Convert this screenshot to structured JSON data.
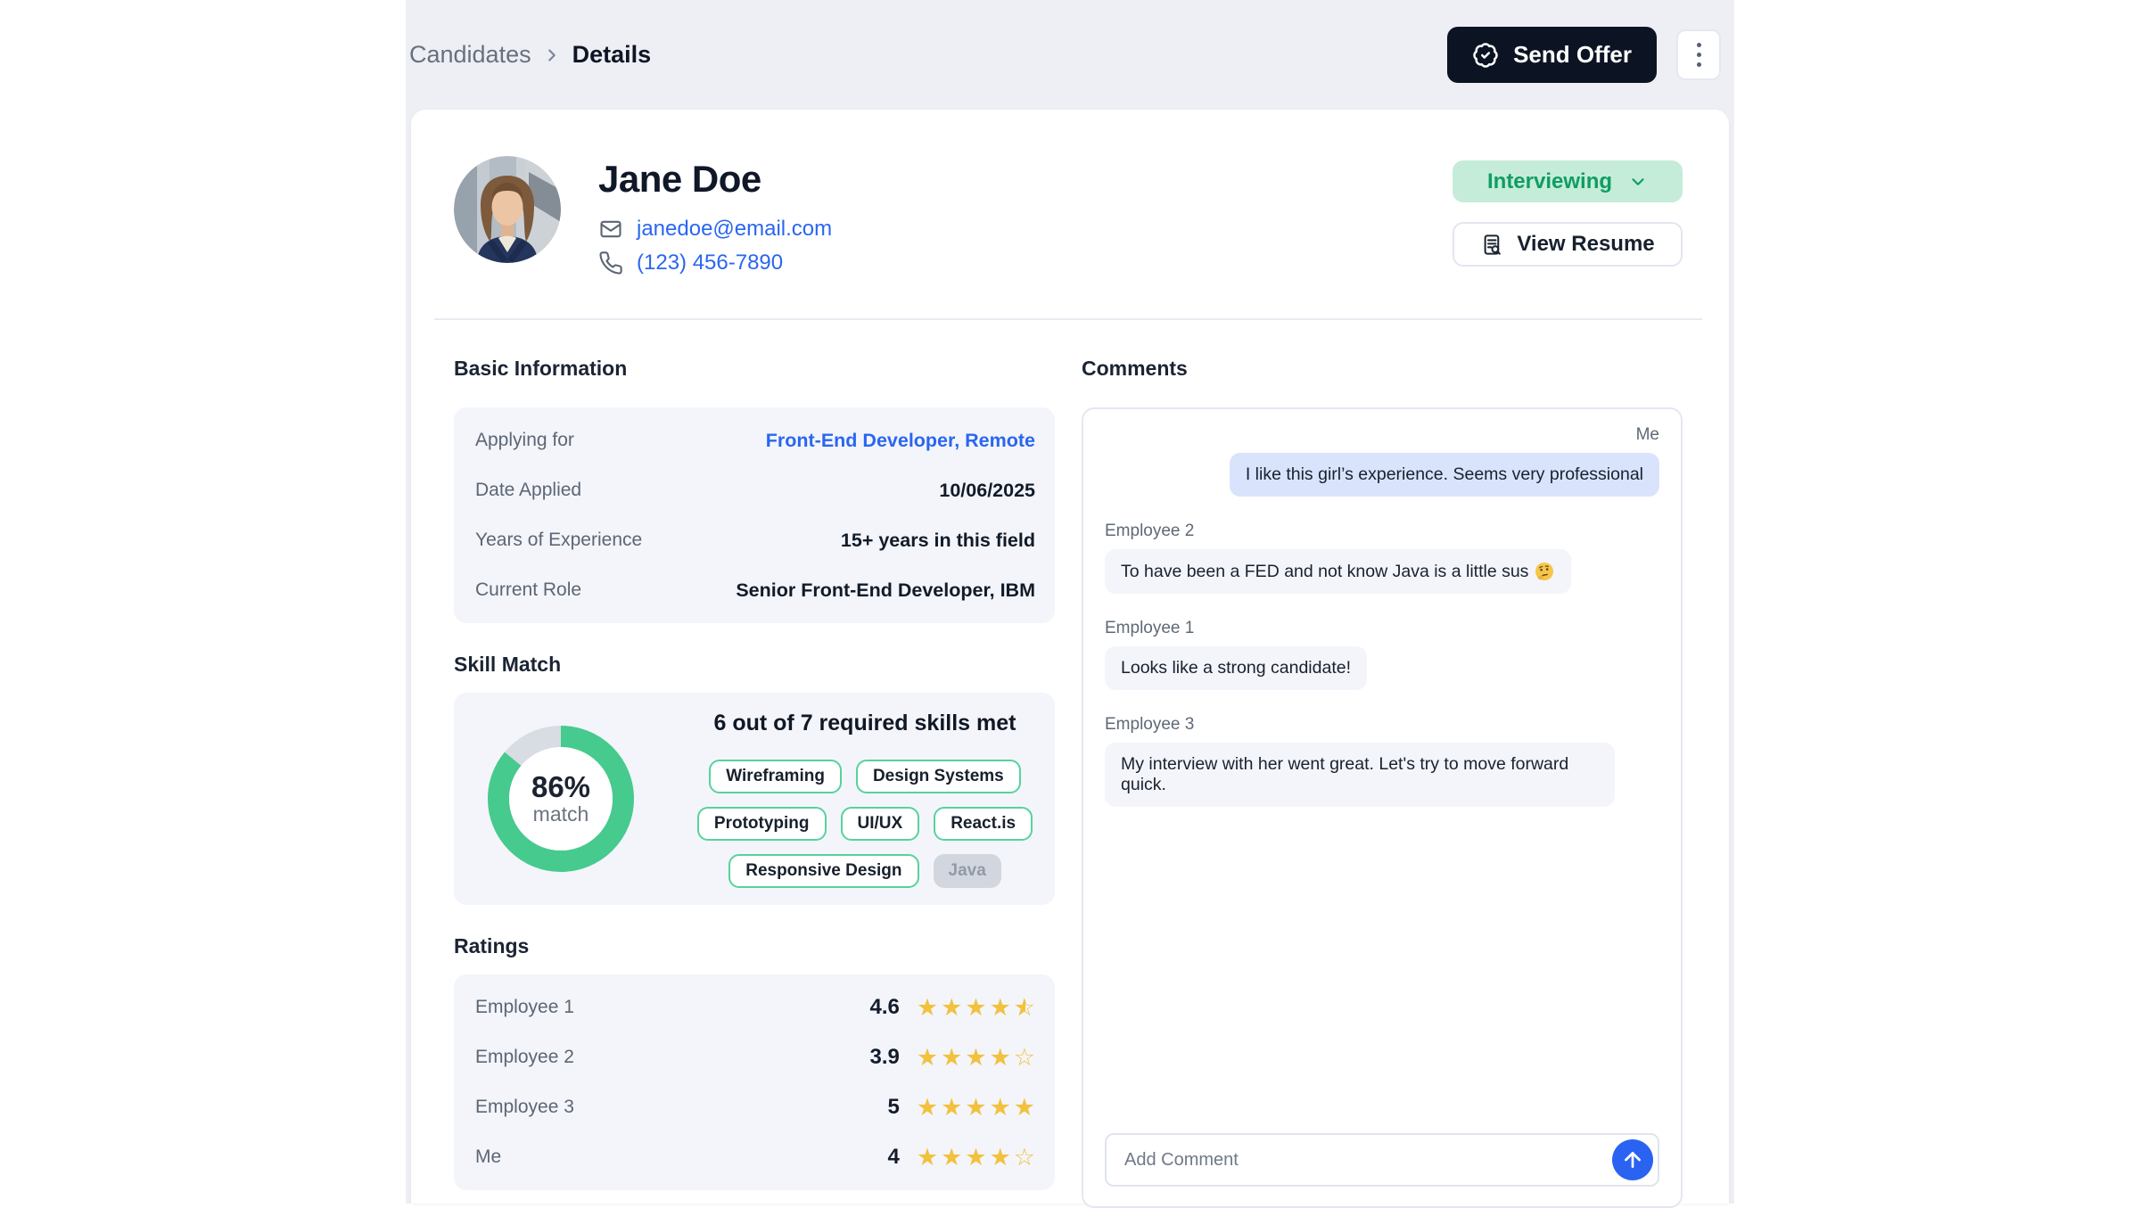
{
  "topbar": {
    "breadcrumb": [
      "Candidates",
      "Details"
    ],
    "send_offer_label": "Send Offer"
  },
  "profile": {
    "name": "Jane Doe",
    "email": "janedoe@email.com",
    "phone": "(123) 456-7890",
    "status": "Interviewing",
    "view_resume_label": "View Resume"
  },
  "basic_info": {
    "title": "Basic Information",
    "rows": [
      {
        "label": "Applying for",
        "value": "Front-End Developer, Remote",
        "link": true
      },
      {
        "label": "Date Applied",
        "value": "10/06/2025",
        "link": false
      },
      {
        "label": "Years of Experience",
        "value": "15+ years in this field",
        "link": false
      },
      {
        "label": "Current Role",
        "value": "Senior Front-End Developer, IBM",
        "link": false
      }
    ]
  },
  "skill_match": {
    "title": "Skill Match",
    "percent": 86,
    "percent_label": "86%",
    "match_label": "match",
    "headline": "6 out of 7 required skills met",
    "skills": [
      {
        "label": "Wireframing",
        "matched": true
      },
      {
        "label": "Design Systems",
        "matched": true
      },
      {
        "label": "Prototyping",
        "matched": true
      },
      {
        "label": "UI/UX",
        "matched": true
      },
      {
        "label": "React.is",
        "matched": true
      },
      {
        "label": "Responsive Design",
        "matched": true
      },
      {
        "label": "Java",
        "matched": false
      }
    ]
  },
  "ratings": {
    "title": "Ratings",
    "rows": [
      {
        "label": "Employee 1",
        "value_display": "4.6",
        "rating": 4.6
      },
      {
        "label": "Employee 2",
        "value_display": "3.9",
        "rating": 3.9
      },
      {
        "label": "Employee 3",
        "value_display": "5",
        "rating": 5
      },
      {
        "label": "Me",
        "value_display": "4",
        "rating": 4
      }
    ]
  },
  "comments": {
    "title": "Comments",
    "messages": [
      {
        "author": "Me",
        "side": "right",
        "text": "I like this girl’s experience. Seems very professional"
      },
      {
        "author": "Employee 2",
        "side": "left",
        "text": "To have been a FED and not know Java is a little sus",
        "emoji": "🤔"
      },
      {
        "author": "Employee 1",
        "side": "left",
        "text": "Looks like a strong candidate!"
      },
      {
        "author": "Employee 3",
        "side": "left",
        "text": "My interview with her went great. Let's try to move forward quick."
      }
    ],
    "input_placeholder": "Add Comment"
  },
  "colors": {
    "page_band": "#edeff4",
    "accent_green": "#46ca8e",
    "status_pill_bg": "#c5ecd9",
    "status_pill_text": "#0f9d63",
    "link_blue": "#2a66f0",
    "star_yellow": "#f2c13d",
    "send_button_blue": "#2a63f2",
    "me_bubble": "#d9e3fb",
    "other_bubble": "#f3f5fa",
    "dark_button": "#0c1424"
  }
}
